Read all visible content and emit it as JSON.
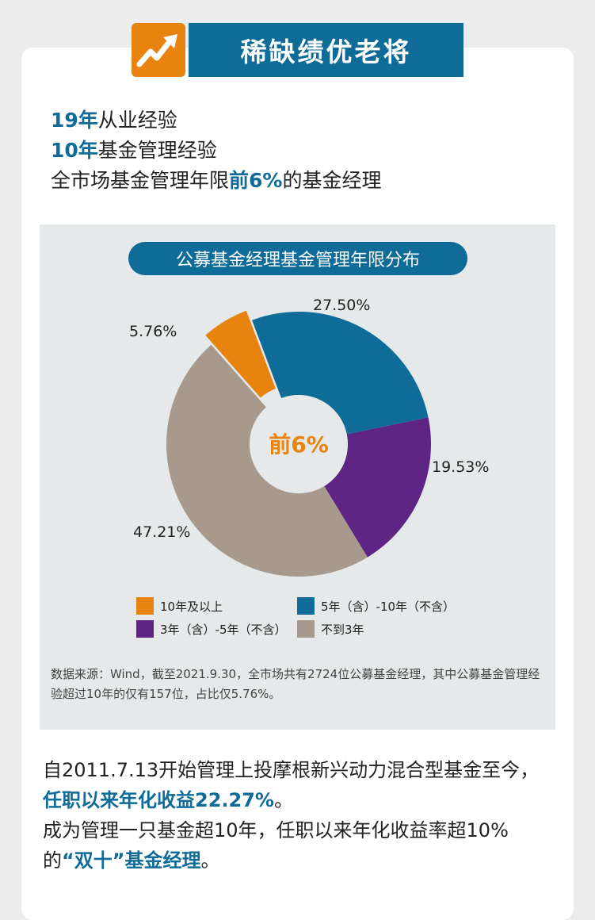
{
  "header": {
    "title": "稀缺绩优老将"
  },
  "stats": {
    "line1": {
      "highlight": "19年",
      "rest": "从业经验"
    },
    "line2": {
      "highlight": "10年",
      "rest": "基金管理经验"
    },
    "line3": {
      "prefix": "全市场基金管理年限",
      "highlight": "前6%",
      "suffix": "的基金经理"
    }
  },
  "chart_data": {
    "type": "pie",
    "title": "公募基金经理基金管理年限分布",
    "center_label": "前6%",
    "slices": [
      {
        "name": "10年及以上",
        "value": 5.76,
        "label": "5.76%",
        "color": "#e9830f",
        "exploded": true
      },
      {
        "name": "5年（含）-10年（不含）",
        "value": 27.5,
        "label": "27.50%",
        "color": "#0f6b98"
      },
      {
        "name": "3年（含）-5年（不含）",
        "value": 19.53,
        "label": "19.53%",
        "color": "#5f2585"
      },
      {
        "name": "不到3年",
        "value": 47.21,
        "label": "47.21%",
        "color": "#a8998d"
      }
    ],
    "legend": [
      {
        "label": "10年及以上",
        "color": "#e9830f"
      },
      {
        "label": "5年（含）-10年（不含）",
        "color": "#0f6b98"
      },
      {
        "label": "3年（含）-5年（不含）",
        "color": "#5f2585"
      },
      {
        "label": "不到3年",
        "color": "#a8998d"
      }
    ],
    "source": "数据来源：Wind，截至2021.9.30，全市场共有2724位公募基金经理，其中公募基金管理经验超过10年的仅有157位，占比仅5.76%。"
  },
  "body": {
    "p1_prefix": "自2011.7.13开始管理上投摩根新兴动力混合型基金至今，",
    "p1_highlight": "任职以来年化收益22.27%",
    "p1_suffix": "。",
    "p2_prefix": "成为管理一只基金超10年，任职以来年化收益率超10%的",
    "p2_highlight": "“双十”基金经理",
    "p2_suffix": "。"
  }
}
